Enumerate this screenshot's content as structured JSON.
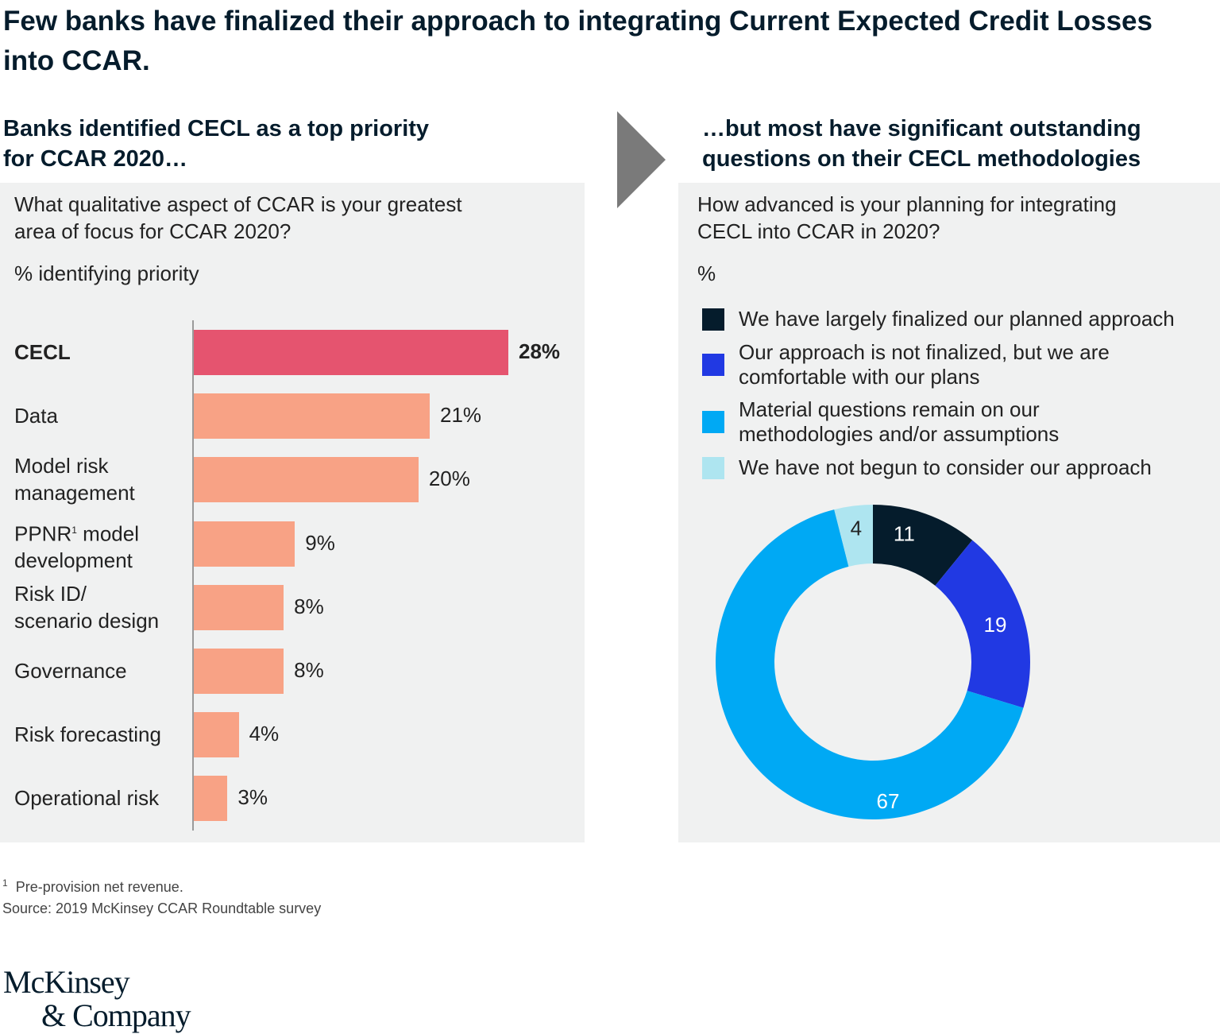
{
  "title": "Few banks have finalized their approach to integrating Current Expected Credit Losses into CCAR.",
  "left": {
    "subhead_line1": "Banks identified CECL as a top priority",
    "subhead_line2": "for CCAR 2020…",
    "question_line1": "What qualitative aspect of CCAR is your greatest",
    "question_line2": "area of focus for CCAR 2020?",
    "unit": "% identifying priority"
  },
  "right": {
    "subhead_line1": "…but most have significant outstanding",
    "subhead_line2": "questions on their CECL methodologies",
    "question_line1": "How advanced is your planning for integrating",
    "question_line2": "CECL into CCAR in 2020?",
    "unit": "%"
  },
  "chart_data": [
    {
      "type": "bar",
      "orientation": "horizontal",
      "title": "What qualitative aspect of CCAR is your greatest area of focus for CCAR 2020?",
      "ylabel": "% identifying priority",
      "categories": [
        "CECL",
        "Data",
        "Model risk management",
        "PPNR¹ model development",
        "Risk ID/ scenario design",
        "Governance",
        "Risk forecasting",
        "Operational risk"
      ],
      "label_lines": [
        [
          "CECL"
        ],
        [
          "Data"
        ],
        [
          "Model risk",
          "management"
        ],
        [
          "PPNR",
          "model",
          "development"
        ],
        [
          "Risk ID/",
          "scenario design"
        ],
        [
          "Governance"
        ],
        [
          "Risk forecasting"
        ],
        [
          "Operational risk"
        ]
      ],
      "values": [
        28,
        21,
        20,
        9,
        8,
        8,
        4,
        3
      ],
      "value_labels": [
        "28%",
        "21%",
        "20%",
        "9%",
        "8%",
        "8%",
        "4%",
        "3%"
      ],
      "highlight_index": 0,
      "colors": {
        "highlight": "#e5546f",
        "default": "#f8a285"
      },
      "xlim": [
        0,
        28
      ]
    },
    {
      "type": "pie",
      "subtype": "donut",
      "title": "How advanced is your planning for integrating CECL into CCAR in 2020?",
      "unit": "%",
      "legend_position": "top",
      "slices": [
        {
          "label": "We have largely finalized our planned approach",
          "value": 11,
          "color": "#051c2c",
          "text_color": "#ffffff"
        },
        {
          "label": "Our approach is not finalized, but we are comfortable with our plans",
          "value": 19,
          "color": "#2139e3",
          "text_color": "#ffffff"
        },
        {
          "label": "Material questions remain on our methodologies and/or assumptions",
          "value": 67,
          "color": "#00a9f4",
          "text_color": "#ffffff"
        },
        {
          "label": "We have not begun to consider our approach",
          "value": 4,
          "color": "#aee5f0",
          "text_color": "#222222"
        }
      ],
      "legend_lines": [
        [
          "We have largely finalized our planned approach"
        ],
        [
          "Our approach is not finalized, but we are",
          "comfortable with our plans"
        ],
        [
          "Material questions remain on our",
          "methodologies and/or assumptions"
        ],
        [
          "We have not begun to consider our approach"
        ]
      ]
    }
  ],
  "footnotes": {
    "note1_marker": "1",
    "note1": "Pre-provision net revenue.",
    "source": "Source: 2019 McKinsey CCAR Roundtable survey"
  },
  "logo": {
    "line1": "McKinsey",
    "line2": "& Company"
  }
}
